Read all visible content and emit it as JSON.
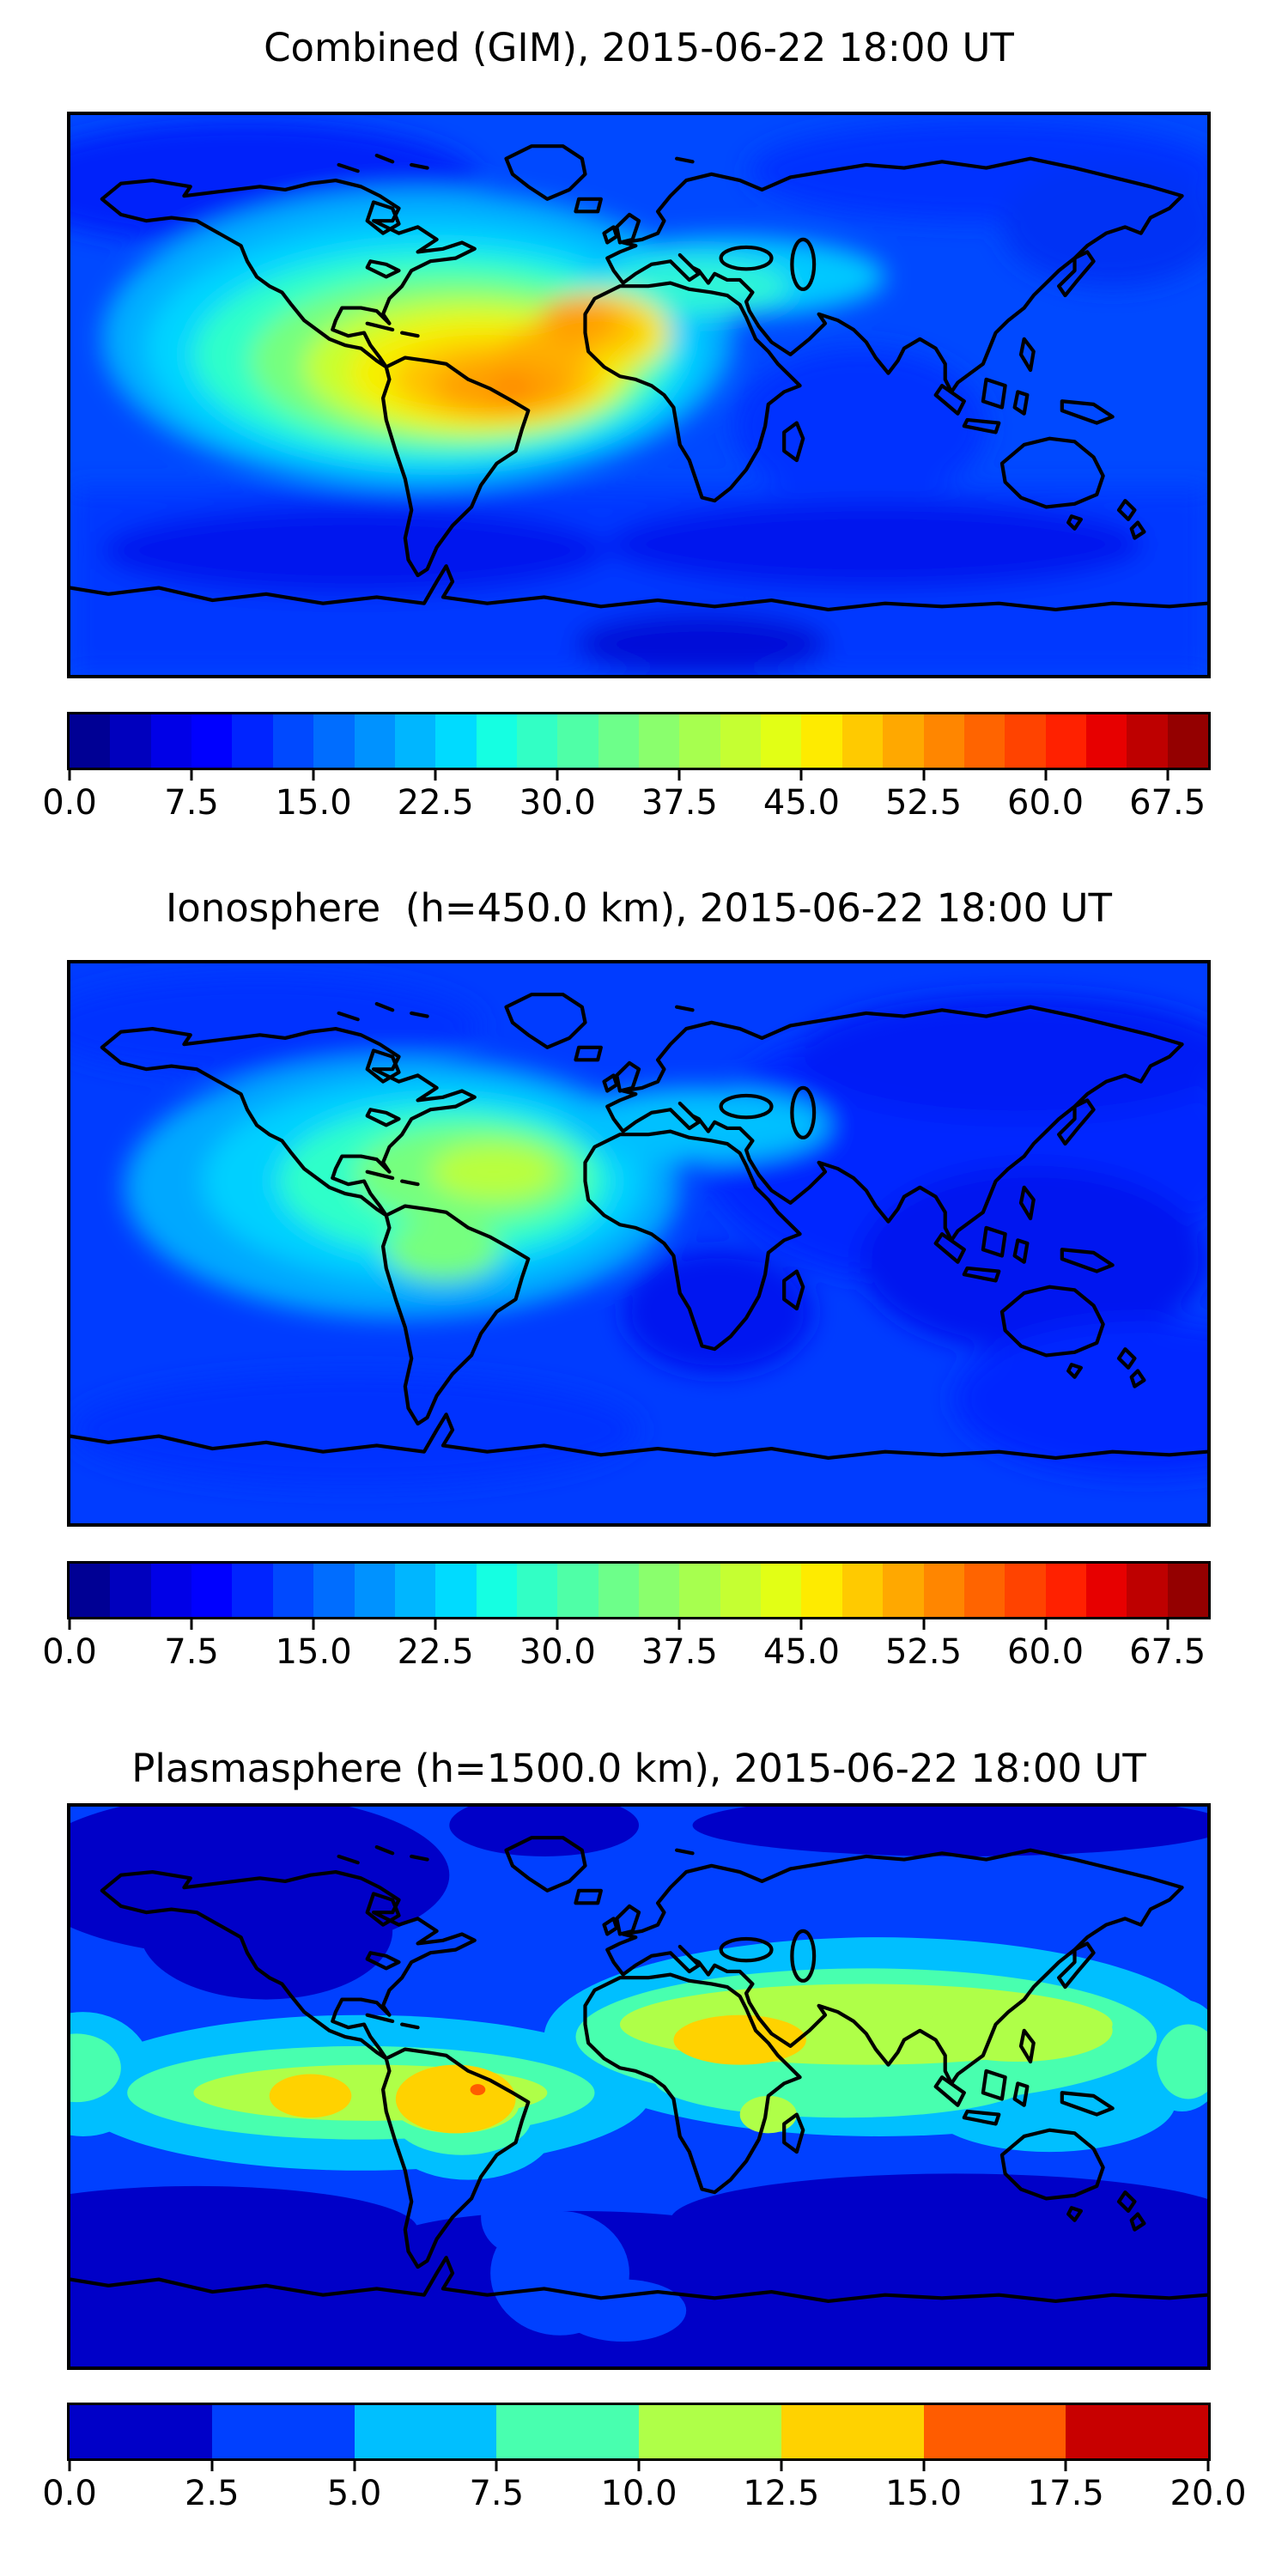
{
  "figure": {
    "background": "#ffffff",
    "border_color": "#000000",
    "coastline_color": "#000000"
  },
  "panels": [
    {
      "id": "combined",
      "title": "Combined (GIM), 2015-06-22 18:00 UT",
      "colorbar": {
        "min": 0,
        "max": 70,
        "tick_values": [
          0,
          7.5,
          15,
          22.5,
          30,
          37.5,
          45,
          52.5,
          60,
          67.5
        ],
        "tick_labels": [
          "0.0",
          "7.5",
          "15.0",
          "22.5",
          "30.0",
          "37.5",
          "45.0",
          "52.5",
          "60.0",
          "67.5"
        ],
        "segment_colors": [
          "#000094",
          "#0000be",
          "#0000e7",
          "#0000ff",
          "#0024ff",
          "#0049ff",
          "#006dff",
          "#0092ff",
          "#00b6ff",
          "#00dbff",
          "#15ffe2",
          "#32ffc5",
          "#4fffa7",
          "#6dff8a",
          "#8aff6d",
          "#a7ff4f",
          "#c5ff32",
          "#e2ff15",
          "#feeb00",
          "#ffca00",
          "#ffa800",
          "#ff8600",
          "#ff6400",
          "#ff4300",
          "#ff2100",
          "#e70000",
          "#be0000",
          "#940000"
        ]
      }
    },
    {
      "id": "ionosphere",
      "title": "Ionosphere  (h=450.0 km), 2015-06-22 18:00 UT",
      "colorbar": {
        "min": 0,
        "max": 70,
        "tick_values": [
          0,
          7.5,
          15,
          22.5,
          30,
          37.5,
          45,
          52.5,
          60,
          67.5
        ],
        "tick_labels": [
          "0.0",
          "7.5",
          "15.0",
          "22.5",
          "30.0",
          "37.5",
          "45.0",
          "52.5",
          "60.0",
          "67.5"
        ],
        "segment_colors": [
          "#000094",
          "#0000be",
          "#0000e7",
          "#0000ff",
          "#0024ff",
          "#0049ff",
          "#006dff",
          "#0092ff",
          "#00b6ff",
          "#00dbff",
          "#15ffe2",
          "#32ffc5",
          "#4fffa7",
          "#6dff8a",
          "#8aff6d",
          "#a7ff4f",
          "#c5ff32",
          "#e2ff15",
          "#feeb00",
          "#ffca00",
          "#ffa800",
          "#ff8600",
          "#ff6400",
          "#ff4300",
          "#ff2100",
          "#e70000",
          "#be0000",
          "#940000"
        ]
      }
    },
    {
      "id": "plasmasphere",
      "title": "Plasmasphere (h=1500.0 km), 2015-06-22 18:00 UT",
      "colorbar": {
        "min": 0,
        "max": 20,
        "tick_values": [
          0,
          2.5,
          5,
          7.5,
          10,
          12.5,
          15,
          17.5,
          20
        ],
        "tick_labels": [
          "0.0",
          "2.5",
          "5.0",
          "7.5",
          "10.0",
          "12.5",
          "15.0",
          "17.5",
          "20.0"
        ],
        "segment_colors": [
          "#0000c8",
          "#0040ff",
          "#00bfff",
          "#48ffaf",
          "#afff48",
          "#ffd200",
          "#ff5c00",
          "#c80000"
        ]
      }
    }
  ],
  "chart_data": [
    {
      "type": "heatmap",
      "subtype": "filled-contour global map with coastlines",
      "title": "Combined (GIM), 2015-06-22 18:00 UT",
      "projection": "equirectangular",
      "lon_range": [
        -180,
        180
      ],
      "lat_range": [
        -90,
        90
      ],
      "colormap": "jet (discrete)",
      "value_range": [
        0,
        70
      ],
      "contour_step": 2.5,
      "colorbar_ticks": [
        0.0,
        7.5,
        15.0,
        22.5,
        30.0,
        37.5,
        45.0,
        52.5,
        60.0,
        67.5
      ],
      "peak": {
        "approx_value": 57.5,
        "location": "equatorial Atlantic / northern South America, extending to NW Africa"
      },
      "secondary": "cyan-green daylit region over Americas, Europe and Mediterranean (~20-35)",
      "minimum": {
        "approx_value": 5,
        "location": "high southern latitudes and night-side Asia/Pacific"
      }
    },
    {
      "type": "heatmap",
      "subtype": "filled-contour global map with coastlines",
      "title": "Ionosphere  (h=450.0 km), 2015-06-22 18:00 UT",
      "projection": "equirectangular",
      "lon_range": [
        -180,
        180
      ],
      "lat_range": [
        -90,
        90
      ],
      "colormap": "jet (discrete)",
      "value_range": [
        0,
        70
      ],
      "contour_step": 2.5,
      "colorbar_ticks": [
        0.0,
        7.5,
        15.0,
        22.5,
        30.0,
        37.5,
        45.0,
        52.5,
        60.0,
        67.5
      ],
      "peak": {
        "approx_value": 42.5,
        "location": "Caribbean / central tropical Atlantic (~20N)"
      },
      "secondary": "green over Brazil and tropical Americas, cyan tongue over Europe/Mediterranean",
      "minimum": {
        "approx_value": 5,
        "location": "south Indian Ocean, SE Asia night sector, south Atlantic"
      }
    },
    {
      "type": "heatmap",
      "subtype": "filled-contour global map with coastlines (8 discrete levels)",
      "title": "Plasmasphere (h=1500.0 km), 2015-06-22 18:00 UT",
      "projection": "equirectangular",
      "lon_range": [
        -180,
        180
      ],
      "lat_range": [
        -90,
        90
      ],
      "colormap": "jet (discrete)",
      "value_range": [
        0,
        20
      ],
      "contour_step": 2.5,
      "colorbar_ticks": [
        0.0,
        2.5,
        5.0,
        7.5,
        10.0,
        12.5,
        15.0,
        17.5,
        20.0
      ],
      "structure": "bright equatorial band following magnetic equator, dark (<2.5) at high latitudes north and south",
      "peaks": [
        {
          "approx_value": 16,
          "location": "small spot at NE Brazil coast"
        },
        {
          "approx_value": 14,
          "location": "South America equatorial blob"
        },
        {
          "approx_value": 14,
          "location": "NE Africa / Arabia blob"
        },
        {
          "approx_value": 14,
          "location": "eastern Pacific blob"
        }
      ]
    }
  ]
}
